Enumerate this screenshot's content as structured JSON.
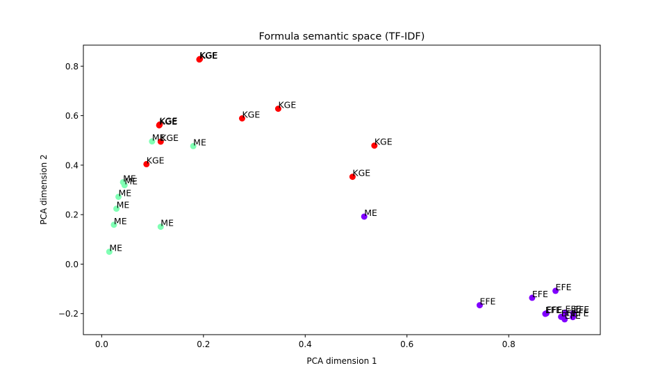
{
  "chart_data": {
    "type": "scatter",
    "title": "Formula semantic space (TF-IDF)",
    "xlabel": "PCA dimension 1",
    "ylabel": "PCA dimension 2",
    "xlim": [
      -0.036,
      0.98
    ],
    "ylim": [
      -0.285,
      0.885
    ],
    "xticks": [
      0.0,
      0.2,
      0.4,
      0.6,
      0.8
    ],
    "xtick_labels": [
      "0.0",
      "0.2",
      "0.4",
      "0.6",
      "0.8"
    ],
    "yticks": [
      -0.2,
      0.0,
      0.2,
      0.4,
      0.6,
      0.8
    ],
    "ytick_labels": [
      "−0.2",
      "0.0",
      "0.2",
      "0.4",
      "0.6",
      "0.8"
    ],
    "grid": false,
    "colors": {
      "KGE": "#ff0000",
      "ME": "#80ffb4",
      "EFE": "#8000ff",
      "ME_purple": "#8000ff"
    },
    "points": [
      {
        "x": 0.192,
        "y": 0.827,
        "label": "KGE",
        "color": "#ff0000"
      },
      {
        "x": 0.193,
        "y": 0.829,
        "label": "KGE",
        "color": "#ff0000"
      },
      {
        "x": 0.347,
        "y": 0.628,
        "label": "KGE",
        "color": "#ff0000"
      },
      {
        "x": 0.276,
        "y": 0.589,
        "label": "KGE",
        "color": "#ff0000"
      },
      {
        "x": 0.113,
        "y": 0.561,
        "label": "KGE",
        "color": "#ff0000"
      },
      {
        "x": 0.114,
        "y": 0.564,
        "label": "KGE",
        "color": "#ff0000"
      },
      {
        "x": 0.116,
        "y": 0.495,
        "label": "KGE",
        "color": "#ff0000"
      },
      {
        "x": 0.536,
        "y": 0.479,
        "label": "KGE",
        "color": "#ff0000"
      },
      {
        "x": 0.088,
        "y": 0.404,
        "label": "KGE",
        "color": "#ff0000"
      },
      {
        "x": 0.493,
        "y": 0.353,
        "label": "KGE",
        "color": "#ff0000"
      },
      {
        "x": 0.099,
        "y": 0.496,
        "label": "ME",
        "color": "#80ffb4"
      },
      {
        "x": 0.18,
        "y": 0.477,
        "label": "ME",
        "color": "#80ffb4"
      },
      {
        "x": 0.042,
        "y": 0.331,
        "label": "ME",
        "color": "#80ffb4"
      },
      {
        "x": 0.045,
        "y": 0.319,
        "label": "ME",
        "color": "#80ffb4"
      },
      {
        "x": 0.033,
        "y": 0.272,
        "label": "ME",
        "color": "#80ffb4"
      },
      {
        "x": 0.029,
        "y": 0.224,
        "label": "ME",
        "color": "#80ffb4"
      },
      {
        "x": 0.024,
        "y": 0.159,
        "label": "ME",
        "color": "#80ffb4"
      },
      {
        "x": 0.116,
        "y": 0.151,
        "label": "ME",
        "color": "#80ffb4"
      },
      {
        "x": 0.015,
        "y": 0.05,
        "label": "ME",
        "color": "#80ffb4"
      },
      {
        "x": 0.516,
        "y": 0.192,
        "label": "ME",
        "color": "#8000ff"
      },
      {
        "x": 0.892,
        "y": -0.108,
        "label": "EFE",
        "color": "#8000ff"
      },
      {
        "x": 0.846,
        "y": -0.136,
        "label": "EFE",
        "color": "#8000ff"
      },
      {
        "x": 0.743,
        "y": -0.166,
        "label": "EFE",
        "color": "#8000ff"
      },
      {
        "x": 0.872,
        "y": -0.201,
        "label": "EFE",
        "color": "#8000ff"
      },
      {
        "x": 0.874,
        "y": -0.199,
        "label": "EFE",
        "color": "#8000ff"
      },
      {
        "x": 0.911,
        "y": -0.196,
        "label": "EFE",
        "color": "#8000ff"
      },
      {
        "x": 0.927,
        "y": -0.198,
        "label": "EFE",
        "color": "#8000ff"
      },
      {
        "x": 0.903,
        "y": -0.213,
        "label": "EFE",
        "color": "#8000ff"
      },
      {
        "x": 0.926,
        "y": -0.214,
        "label": "EFE",
        "color": "#8000ff"
      },
      {
        "x": 0.91,
        "y": -0.223,
        "label": "EFE",
        "color": "#8000ff"
      }
    ]
  }
}
